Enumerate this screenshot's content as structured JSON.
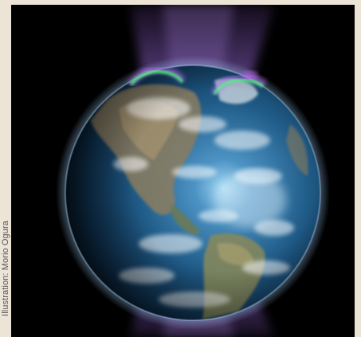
{
  "image": {
    "subject": "earth-with-aurora",
    "background_color": "#000000",
    "frame_color": "#ece4d6"
  },
  "credit": {
    "text": "Illustration: Morio Ogura"
  },
  "colors": {
    "aurora_green": "#4cff7a",
    "aurora_purple": "#c05cff",
    "beam_purple": "#8a5cc8",
    "ocean": "#1b4f7a",
    "land": "#8a7a5c"
  }
}
